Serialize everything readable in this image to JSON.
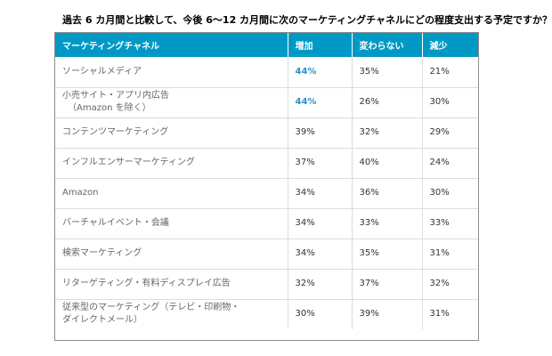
{
  "title": "過去 6 カ月間と比較して、今後 6～12 カ月間に次のマーケティングチャネルにどの程度支出する予定ですか？",
  "table": {
    "headers": [
      "マーケティングチャネル",
      "増加",
      "変わらない",
      "減少"
    ],
    "rows": [
      {
        "name": "ソーシャルメディア",
        "sub": "",
        "increase": "44%",
        "same": "35%",
        "decrease": "21%",
        "highlight": true
      },
      {
        "name": "小売サイト・アプリ内広告",
        "sub": "（Amazon を除く）",
        "increase": "44%",
        "same": "26%",
        "decrease": "30%",
        "highlight": true
      },
      {
        "name": "コンテンツマーケティング",
        "sub": "",
        "increase": "39%",
        "same": "32%",
        "decrease": "29%",
        "highlight": false
      },
      {
        "name": "インフルエンサーマーケティング",
        "sub": "",
        "increase": "37%",
        "same": "40%",
        "decrease": "24%",
        "highlight": false
      },
      {
        "name": "Amazon",
        "sub": "",
        "increase": "34%",
        "same": "36%",
        "decrease": "30%",
        "highlight": false
      },
      {
        "name": "バーチャルイベント・会議",
        "sub": "",
        "increase": "34%",
        "same": "33%",
        "decrease": "33%",
        "highlight": false
      },
      {
        "name": "検索マーケティング",
        "sub": "",
        "increase": "34%",
        "same": "35%",
        "decrease": "31%",
        "highlight": false
      },
      {
        "name": "リターゲティング・有料ディスプレイ広告",
        "sub": "",
        "increase": "32%",
        "same": "37%",
        "decrease": "32%",
        "highlight": false
      },
      {
        "name": "従来型のマーケティング（テレビ・印刷物・",
        "sub": "ダイレクトメール）",
        "increase": "30%",
        "same": "39%",
        "decrease": "31%",
        "highlight": false
      }
    ],
    "colors": {
      "header_bg": "#0099c6",
      "header_text": "#ffffff",
      "highlight_text": "#2f8fd0"
    }
  }
}
